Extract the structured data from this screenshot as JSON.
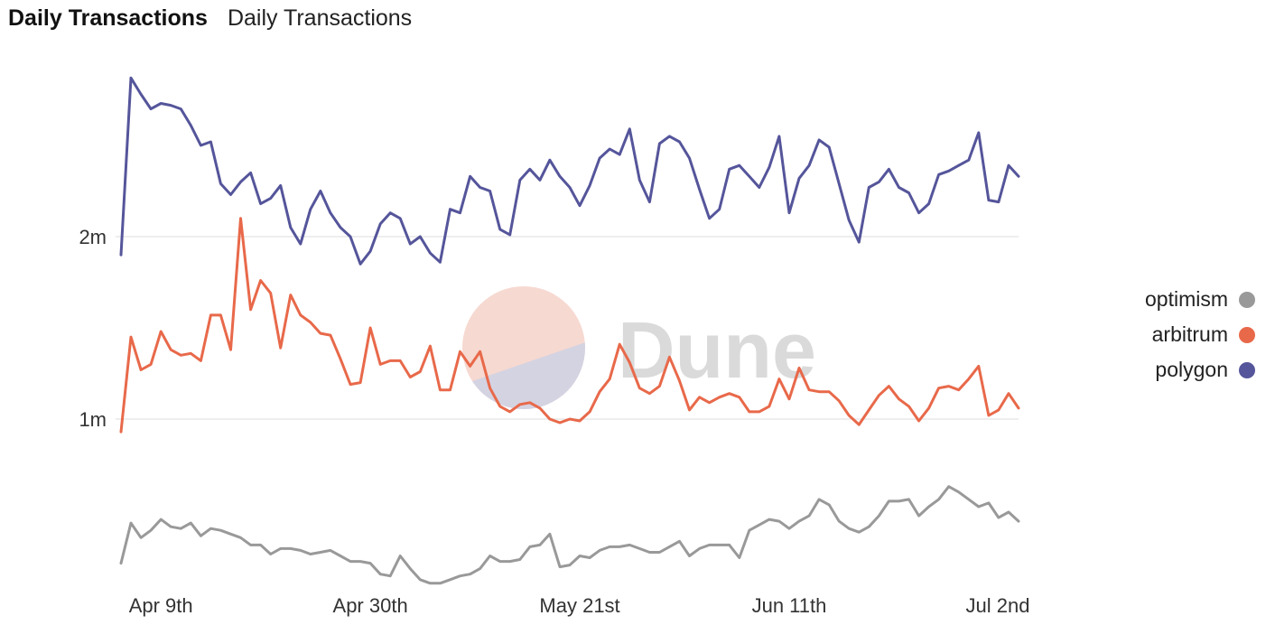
{
  "header": {
    "title": "Daily Transactions",
    "subtitle": "Daily Transactions"
  },
  "watermark": {
    "text": "Dune"
  },
  "legend": [
    {
      "label": "optimism",
      "color": "#999999"
    },
    {
      "label": "arbitrum",
      "color": "#e8694a"
    },
    {
      "label": "polygon",
      "color": "#55559b"
    }
  ],
  "chart_data": {
    "type": "line",
    "title": "Daily Transactions",
    "xlabel": "",
    "ylabel": "",
    "ylim": [
      0.0,
      2.85
    ],
    "x_tick_labels": [
      "Apr 9th",
      "Apr 30th",
      "May 21st",
      "Jun 11th",
      "Jul 2nd"
    ],
    "y_tick_labels": [
      "1m",
      "2m"
    ],
    "y_tick_values": [
      1.0,
      2.0
    ],
    "grid": "horizontal",
    "legend_position": "right",
    "series": [
      {
        "name": "polygon",
        "color": "#55559b",
        "values": [
          1.9,
          2.87,
          2.78,
          2.7,
          2.73,
          2.72,
          2.7,
          2.61,
          2.5,
          2.52,
          2.29,
          2.23,
          2.3,
          2.35,
          2.18,
          2.21,
          2.28,
          2.05,
          1.96,
          2.15,
          2.25,
          2.13,
          2.05,
          2.0,
          1.85,
          1.92,
          2.07,
          2.13,
          2.1,
          1.96,
          2.0,
          1.91,
          1.86,
          2.15,
          2.13,
          2.33,
          2.27,
          2.25,
          2.04,
          2.01,
          2.31,
          2.37,
          2.31,
          2.42,
          2.33,
          2.27,
          2.17,
          2.28,
          2.43,
          2.48,
          2.45,
          2.59,
          2.31,
          2.19,
          2.51,
          2.55,
          2.52,
          2.43,
          2.26,
          2.1,
          2.15,
          2.37,
          2.39,
          2.33,
          2.27,
          2.38,
          2.55,
          2.13,
          2.32,
          2.39,
          2.53,
          2.49,
          2.29,
          2.09,
          1.97,
          2.27,
          2.3,
          2.37,
          2.27,
          2.24,
          2.13,
          2.18,
          2.34,
          2.36,
          2.39,
          2.42,
          2.57,
          2.2,
          2.19,
          2.39,
          2.33
        ]
      },
      {
        "name": "arbitrum",
        "color": "#e8694a",
        "values": [
          0.93,
          1.45,
          1.27,
          1.3,
          1.48,
          1.38,
          1.35,
          1.36,
          1.32,
          1.57,
          1.57,
          1.38,
          2.1,
          1.6,
          1.76,
          1.69,
          1.39,
          1.68,
          1.57,
          1.53,
          1.47,
          1.46,
          1.33,
          1.19,
          1.2,
          1.5,
          1.3,
          1.32,
          1.32,
          1.23,
          1.26,
          1.4,
          1.16,
          1.16,
          1.37,
          1.29,
          1.37,
          1.17,
          1.07,
          1.04,
          1.08,
          1.09,
          1.06,
          1.0,
          0.98,
          1.0,
          0.99,
          1.04,
          1.15,
          1.22,
          1.41,
          1.31,
          1.17,
          1.14,
          1.18,
          1.34,
          1.21,
          1.05,
          1.12,
          1.09,
          1.12,
          1.14,
          1.12,
          1.04,
          1.04,
          1.07,
          1.22,
          1.11,
          1.28,
          1.16,
          1.15,
          1.15,
          1.1,
          1.02,
          0.97,
          1.05,
          1.13,
          1.18,
          1.11,
          1.07,
          0.99,
          1.06,
          1.17,
          1.18,
          1.16,
          1.22,
          1.29,
          1.02,
          1.05,
          1.14,
          1.06
        ]
      },
      {
        "name": "optimism",
        "color": "#999999",
        "values": [
          0.21,
          0.43,
          0.35,
          0.39,
          0.45,
          0.41,
          0.4,
          0.43,
          0.36,
          0.4,
          0.39,
          0.37,
          0.35,
          0.31,
          0.31,
          0.26,
          0.29,
          0.29,
          0.28,
          0.26,
          0.27,
          0.28,
          0.25,
          0.22,
          0.22,
          0.21,
          0.15,
          0.14,
          0.25,
          0.18,
          0.12,
          0.1,
          0.1,
          0.12,
          0.14,
          0.15,
          0.18,
          0.25,
          0.22,
          0.22,
          0.23,
          0.3,
          0.31,
          0.37,
          0.19,
          0.2,
          0.25,
          0.24,
          0.28,
          0.3,
          0.3,
          0.31,
          0.29,
          0.27,
          0.27,
          0.3,
          0.33,
          0.25,
          0.29,
          0.31,
          0.31,
          0.31,
          0.24,
          0.39,
          0.42,
          0.45,
          0.44,
          0.4,
          0.44,
          0.47,
          0.56,
          0.53,
          0.44,
          0.4,
          0.38,
          0.41,
          0.47,
          0.55,
          0.55,
          0.56,
          0.47,
          0.52,
          0.56,
          0.63,
          0.6,
          0.56,
          0.52,
          0.54,
          0.46,
          0.49,
          0.44
        ]
      }
    ]
  }
}
